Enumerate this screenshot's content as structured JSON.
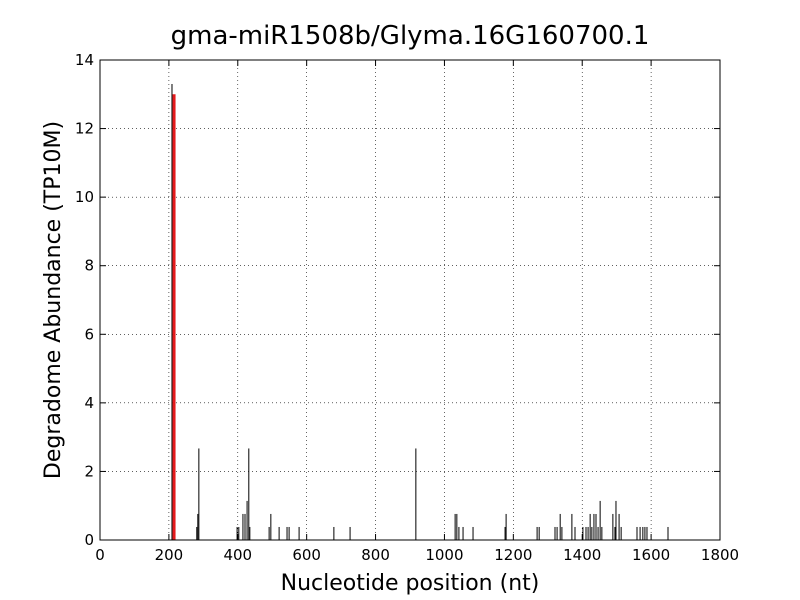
{
  "chart_data": {
    "type": "vlines",
    "title": "gma-miR1508b/Glyma.16G160700.1",
    "x_label": "Nucleotide position (nt)",
    "y_label": "Degradome Abundance (TP10M)",
    "xlim": [
      0,
      1800
    ],
    "xticks": [
      0,
      200,
      400,
      600,
      800,
      1000,
      1200,
      1400,
      1600,
      1800
    ],
    "ylim": [
      0,
      14
    ],
    "yticks": [
      0,
      2,
      4,
      6,
      8,
      10,
      12,
      14
    ],
    "grid": true,
    "series": [
      {
        "color": "#000000",
        "width": 1,
        "x": [
          209,
          281,
          284,
          287,
          398,
          403,
          415,
          421,
          427,
          432,
          435,
          491,
          496,
          520,
          543,
          549,
          578,
          679,
          726,
          917,
          1031,
          1036,
          1042,
          1054,
          1083,
          1176,
          1179,
          1269,
          1275,
          1321,
          1327,
          1336,
          1341,
          1370,
          1379,
          1402,
          1411,
          1417,
          1423,
          1428,
          1434,
          1440,
          1446,
          1452,
          1457,
          1489,
          1495,
          1498,
          1507,
          1513,
          1559,
          1568,
          1576,
          1582,
          1588,
          1649
        ],
        "values": [
          13.3,
          0.38,
          0.76,
          2.67,
          0.38,
          0.38,
          0.76,
          0.76,
          1.14,
          2.67,
          0.38,
          0.38,
          0.76,
          0.38,
          0.38,
          0.38,
          0.38,
          0.38,
          0.38,
          2.67,
          0.76,
          0.76,
          0.38,
          0.38,
          0.38,
          0.38,
          0.76,
          0.38,
          0.38,
          0.38,
          0.38,
          0.76,
          0.38,
          0.76,
          0.38,
          0.38,
          0.38,
          0.38,
          0.76,
          0.38,
          0.76,
          0.76,
          0.38,
          1.14,
          0.38,
          0.76,
          0.38,
          1.14,
          0.76,
          0.38,
          0.38,
          0.38,
          0.38,
          0.38,
          0.38,
          0.38
        ]
      },
      {
        "color": "#e41a1c",
        "width": 3,
        "x": [
          215
        ],
        "values": [
          13.0
        ]
      }
    ]
  }
}
